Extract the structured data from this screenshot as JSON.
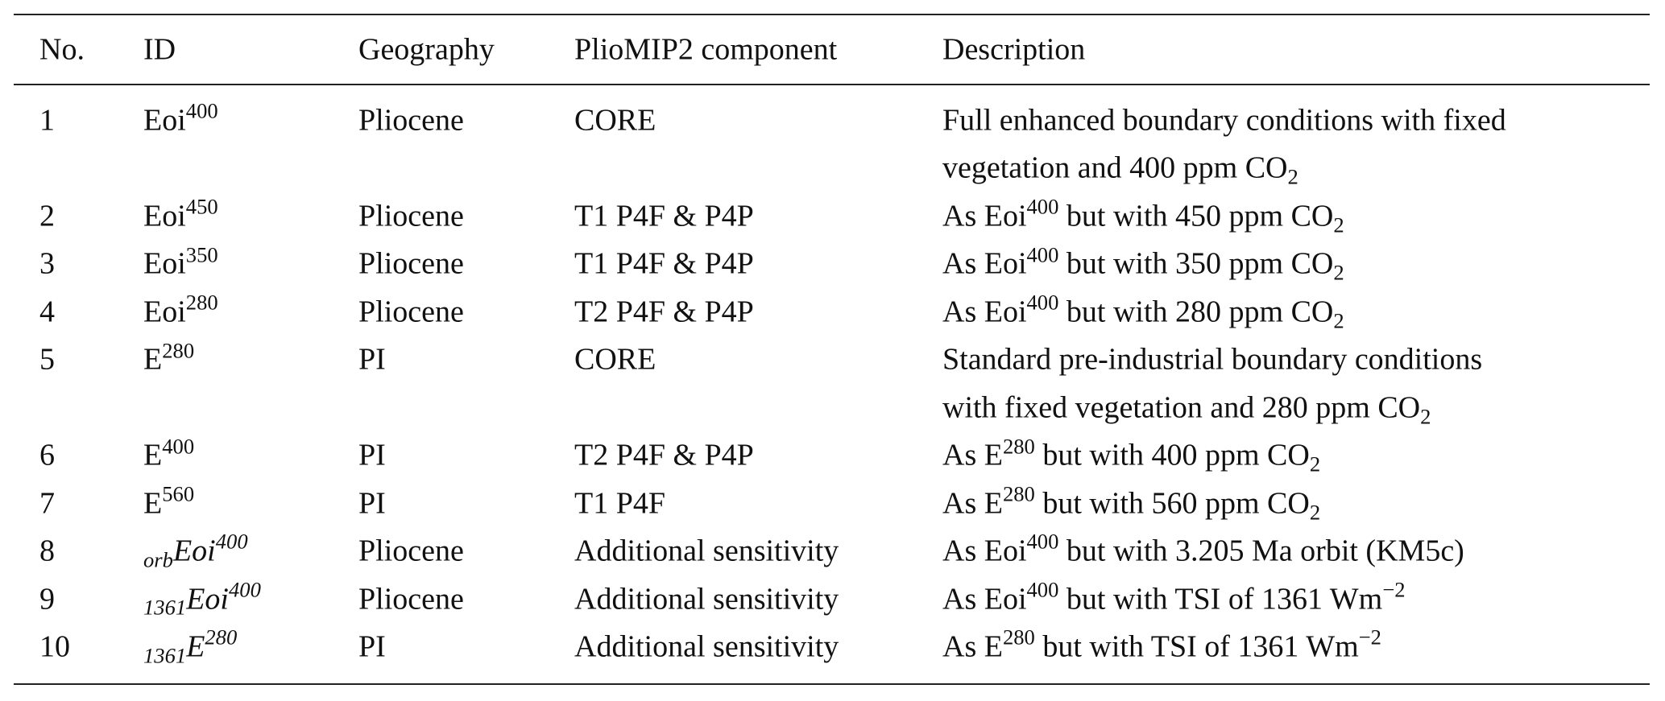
{
  "headers": [
    "No.",
    "ID",
    "Geography",
    "PlioMIP2 component",
    "Description"
  ],
  "rows": [
    {
      "no": "1",
      "id": {
        "pre": "",
        "base": "Eoi",
        "sup": "400",
        "italic": false
      },
      "geo": "Pliocene",
      "comp": "CORE",
      "desc": [
        [
          {
            "t": "Full enhanced boundary conditions with fixed"
          }
        ],
        [
          {
            "t": "vegetation and 400 ppm CO"
          },
          {
            "t": "2",
            "s": "sub"
          }
        ]
      ]
    },
    {
      "no": "2",
      "id": {
        "pre": "",
        "base": "Eoi",
        "sup": "450",
        "italic": false
      },
      "geo": "Pliocene",
      "comp": "T1 P4F & P4P",
      "desc": [
        [
          {
            "t": "As Eoi"
          },
          {
            "t": "400",
            "s": "sup"
          },
          {
            "t": " but with 450 ppm CO"
          },
          {
            "t": "2",
            "s": "sub"
          }
        ]
      ]
    },
    {
      "no": "3",
      "id": {
        "pre": "",
        "base": "Eoi",
        "sup": "350",
        "italic": false
      },
      "geo": "Pliocene",
      "comp": "T1 P4F & P4P",
      "desc": [
        [
          {
            "t": "As Eoi"
          },
          {
            "t": "400",
            "s": "sup"
          },
          {
            "t": " but with 350 ppm CO"
          },
          {
            "t": "2",
            "s": "sub"
          }
        ]
      ]
    },
    {
      "no": "4",
      "id": {
        "pre": "",
        "base": "Eoi",
        "sup": "280",
        "italic": false
      },
      "geo": "Pliocene",
      "comp": "T2 P4F & P4P",
      "desc": [
        [
          {
            "t": "As Eoi"
          },
          {
            "t": "400",
            "s": "sup"
          },
          {
            "t": " but with 280 ppm CO"
          },
          {
            "t": "2",
            "s": "sub"
          }
        ]
      ]
    },
    {
      "no": "5",
      "id": {
        "pre": "",
        "base": "E",
        "sup": "280",
        "italic": false
      },
      "geo": "PI",
      "comp": "CORE",
      "desc": [
        [
          {
            "t": "Standard pre-industrial boundary conditions"
          }
        ],
        [
          {
            "t": "with fixed vegetation and 280 ppm CO"
          },
          {
            "t": "2",
            "s": "sub"
          }
        ]
      ]
    },
    {
      "no": "6",
      "id": {
        "pre": "",
        "base": "E",
        "sup": "400",
        "italic": false
      },
      "geo": "PI",
      "comp": "T2 P4F & P4P",
      "desc": [
        [
          {
            "t": "As E"
          },
          {
            "t": "280",
            "s": "sup"
          },
          {
            "t": " but with 400 ppm CO"
          },
          {
            "t": "2",
            "s": "sub"
          }
        ]
      ]
    },
    {
      "no": "7",
      "id": {
        "pre": "",
        "base": "E",
        "sup": "560",
        "italic": false
      },
      "geo": "PI",
      "comp": "T1 P4F",
      "desc": [
        [
          {
            "t": "As E"
          },
          {
            "t": "280",
            "s": "sup"
          },
          {
            "t": " but with 560 ppm CO"
          },
          {
            "t": "2",
            "s": "sub"
          }
        ]
      ]
    },
    {
      "no": "8",
      "id": {
        "pre": "orb",
        "base": "Eoi",
        "sup": "400",
        "italic": true
      },
      "geo": "Pliocene",
      "comp": "Additional sensitivity",
      "desc": [
        [
          {
            "t": "As Eoi"
          },
          {
            "t": "400",
            "s": "sup"
          },
          {
            "t": " but with 3.205 Ma orbit (KM5c)"
          }
        ]
      ]
    },
    {
      "no": "9",
      "id": {
        "pre": "1361",
        "base": "Eoi",
        "sup": "400",
        "italic": true
      },
      "geo": "Pliocene",
      "comp": "Additional sensitivity",
      "desc": [
        [
          {
            "t": "As Eoi"
          },
          {
            "t": "400",
            "s": "sup"
          },
          {
            "t": " but with TSI of 1361 Wm"
          },
          {
            "t": "−2",
            "s": "sup"
          }
        ]
      ]
    },
    {
      "no": "10",
      "id": {
        "pre": "1361",
        "base": "E",
        "sup": "280",
        "italic": true
      },
      "geo": "PI",
      "comp": "Additional sensitivity",
      "desc": [
        [
          {
            "t": "As E"
          },
          {
            "t": "280",
            "s": "sup"
          },
          {
            "t": " but with TSI of 1361 Wm"
          },
          {
            "t": "−2",
            "s": "sup"
          }
        ]
      ]
    }
  ]
}
